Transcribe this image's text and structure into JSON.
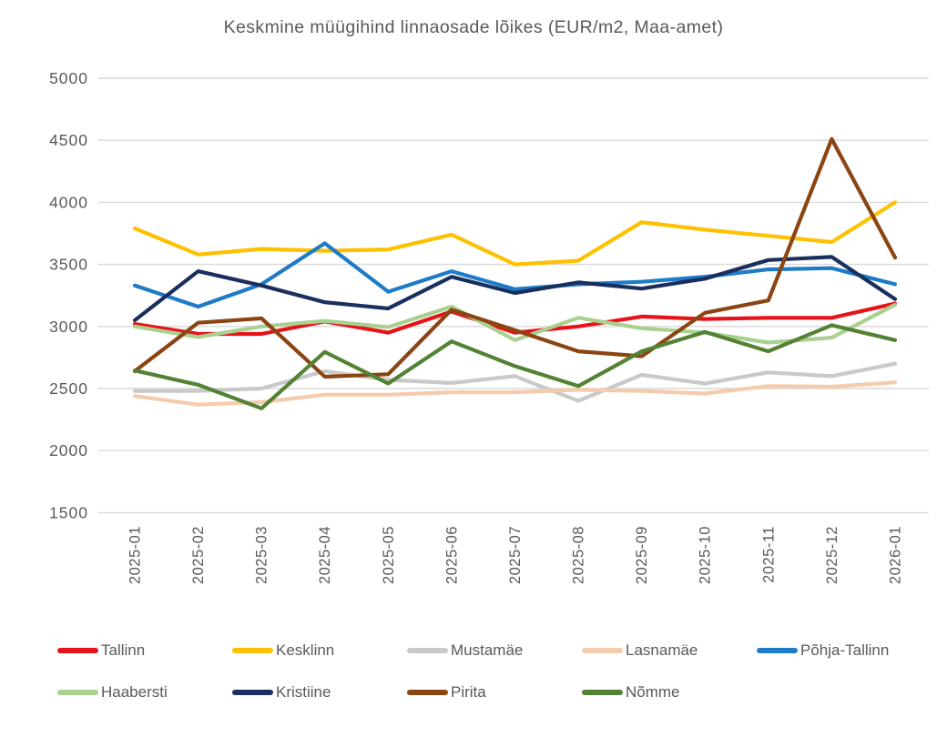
{
  "chart_data": {
    "type": "line",
    "title": "Keskmine müügihind linnaosade lõikes (EUR/m2, Maa-amet)",
    "x_labels": [
      "2025-01",
      "2025-02",
      "2025-03",
      "2025-04",
      "2025-05",
      "2025-06",
      "2025-07",
      "2025-08",
      "2025-09",
      "2025-10",
      "2025-11",
      "2025-12",
      "2026-01"
    ],
    "y_ticks": [
      5000,
      4500,
      4000,
      3500,
      3000,
      2500,
      2000,
      1500
    ],
    "ylim": [
      1500,
      5000
    ],
    "grid": true,
    "legend_position": "bottom",
    "colors": {
      "grid": "#d9d9d9",
      "text": "#595959"
    },
    "series": [
      {
        "name": "Tallinn",
        "color": "#e8131a",
        "values": [
          3020,
          2940,
          2940,
          3040,
          2950,
          3120,
          2950,
          3000,
          3080,
          3060,
          3070,
          3070,
          3185
        ]
      },
      {
        "name": "Kesklinn",
        "color": "#fdc101",
        "values": [
          3790,
          3580,
          3625,
          3610,
          3620,
          3740,
          3500,
          3530,
          3840,
          3780,
          3730,
          3680,
          4000
        ]
      },
      {
        "name": "Mustamäe",
        "color": "#c9c9c9",
        "values": [
          2480,
          2480,
          2500,
          2640,
          2570,
          2545,
          2600,
          2400,
          2610,
          2540,
          2630,
          2600,
          2700
        ]
      },
      {
        "name": "Lasnamäe",
        "color": "#f5cbad",
        "values": [
          2440,
          2370,
          2390,
          2450,
          2450,
          2470,
          2470,
          2490,
          2480,
          2460,
          2520,
          2515,
          2550
        ]
      },
      {
        "name": "Põhja-Tallinn",
        "color": "#1e7bc8",
        "values": [
          3330,
          3160,
          3340,
          3670,
          3280,
          3445,
          3300,
          3340,
          3360,
          3400,
          3460,
          3470,
          3340
        ]
      },
      {
        "name": "Haabersti",
        "color": "#a9d08f",
        "values": [
          3000,
          2915,
          3000,
          3045,
          2995,
          3160,
          2890,
          3070,
          2985,
          2950,
          2870,
          2910,
          3175
        ]
      },
      {
        "name": "Kristiine",
        "color": "#1a2f5e",
        "values": [
          3050,
          3445,
          3330,
          3195,
          3145,
          3400,
          3270,
          3355,
          3305,
          3385,
          3535,
          3560,
          3220
        ]
      },
      {
        "name": "Pirita",
        "color": "#8b4513",
        "values": [
          2640,
          3030,
          3065,
          2595,
          2615,
          3135,
          2970,
          2800,
          2760,
          3110,
          3210,
          4510,
          3555
        ]
      },
      {
        "name": "Nõmme",
        "color": "#548235",
        "values": [
          2645,
          2530,
          2340,
          2795,
          2540,
          2880,
          2680,
          2520,
          2800,
          2955,
          2800,
          3010,
          2890
        ]
      }
    ]
  }
}
